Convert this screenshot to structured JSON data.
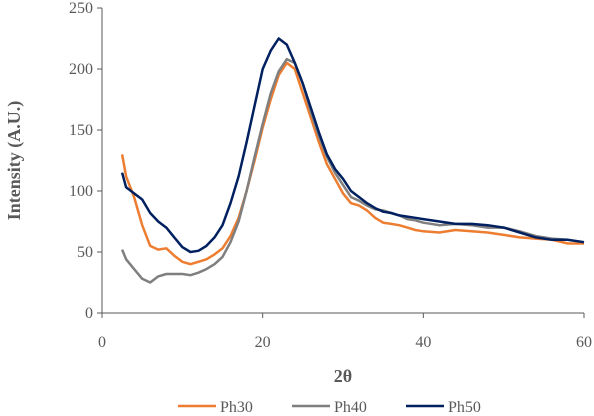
{
  "chart_data": {
    "type": "line",
    "title": "",
    "xlabel": "2θ",
    "ylabel": "Intensity (A.U.)",
    "xlim": [
      0,
      60
    ],
    "ylim": [
      0,
      250
    ],
    "xticks": [
      0,
      20,
      40,
      60
    ],
    "yticks": [
      0,
      50,
      100,
      150,
      200,
      250
    ],
    "grid": false,
    "legend_position": "bottom",
    "series": [
      {
        "name": "Ph30",
        "color": "#ED7D31",
        "points": [
          [
            2.5,
            130
          ],
          [
            3,
            112
          ],
          [
            4,
            95
          ],
          [
            5,
            72
          ],
          [
            6,
            55
          ],
          [
            7,
            52
          ],
          [
            8,
            53
          ],
          [
            9,
            47
          ],
          [
            10,
            42
          ],
          [
            11,
            40
          ],
          [
            12,
            42
          ],
          [
            13,
            44
          ],
          [
            14,
            48
          ],
          [
            15,
            53
          ],
          [
            16,
            63
          ],
          [
            17,
            78
          ],
          [
            18,
            100
          ],
          [
            19,
            125
          ],
          [
            20,
            152
          ],
          [
            21,
            175
          ],
          [
            22,
            195
          ],
          [
            23,
            205
          ],
          [
            24,
            200
          ],
          [
            25,
            180
          ],
          [
            26,
            160
          ],
          [
            27,
            140
          ],
          [
            28,
            122
          ],
          [
            29,
            110
          ],
          [
            30,
            98
          ],
          [
            31,
            90
          ],
          [
            32,
            88
          ],
          [
            33,
            84
          ],
          [
            34,
            78
          ],
          [
            35,
            74
          ],
          [
            36,
            73
          ],
          [
            37,
            72
          ],
          [
            38,
            70
          ],
          [
            39,
            68
          ],
          [
            40,
            67
          ],
          [
            42,
            66
          ],
          [
            44,
            68
          ],
          [
            46,
            67
          ],
          [
            48,
            66
          ],
          [
            50,
            64
          ],
          [
            52,
            62
          ],
          [
            54,
            61
          ],
          [
            56,
            60
          ],
          [
            58,
            57
          ],
          [
            60,
            57
          ]
        ]
      },
      {
        "name": "Ph40",
        "color": "#7F7F7F",
        "points": [
          [
            2.5,
            52
          ],
          [
            3,
            44
          ],
          [
            4,
            36
          ],
          [
            5,
            28
          ],
          [
            6,
            25
          ],
          [
            7,
            30
          ],
          [
            8,
            32
          ],
          [
            9,
            32
          ],
          [
            10,
            32
          ],
          [
            11,
            31
          ],
          [
            12,
            33
          ],
          [
            13,
            36
          ],
          [
            14,
            40
          ],
          [
            15,
            46
          ],
          [
            16,
            58
          ],
          [
            17,
            75
          ],
          [
            18,
            100
          ],
          [
            19,
            128
          ],
          [
            20,
            155
          ],
          [
            21,
            180
          ],
          [
            22,
            198
          ],
          [
            23,
            208
          ],
          [
            24,
            205
          ],
          [
            25,
            188
          ],
          [
            26,
            165
          ],
          [
            27,
            145
          ],
          [
            28,
            128
          ],
          [
            29,
            115
          ],
          [
            30,
            105
          ],
          [
            31,
            95
          ],
          [
            32,
            92
          ],
          [
            33,
            88
          ],
          [
            34,
            85
          ],
          [
            35,
            84
          ],
          [
            36,
            82
          ],
          [
            37,
            80
          ],
          [
            38,
            77
          ],
          [
            39,
            76
          ],
          [
            40,
            74
          ],
          [
            42,
            72
          ],
          [
            44,
            73
          ],
          [
            46,
            72
          ],
          [
            48,
            70
          ],
          [
            50,
            70
          ],
          [
            52,
            67
          ],
          [
            54,
            63
          ],
          [
            56,
            61
          ],
          [
            58,
            60
          ],
          [
            60,
            58
          ]
        ]
      },
      {
        "name": "Ph50",
        "color": "#002060",
        "points": [
          [
            2.5,
            115
          ],
          [
            3,
            103
          ],
          [
            4,
            98
          ],
          [
            5,
            93
          ],
          [
            6,
            82
          ],
          [
            7,
            75
          ],
          [
            8,
            70
          ],
          [
            9,
            62
          ],
          [
            10,
            54
          ],
          [
            11,
            50
          ],
          [
            12,
            51
          ],
          [
            13,
            55
          ],
          [
            14,
            62
          ],
          [
            15,
            72
          ],
          [
            16,
            90
          ],
          [
            17,
            112
          ],
          [
            18,
            140
          ],
          [
            19,
            170
          ],
          [
            20,
            200
          ],
          [
            21,
            215
          ],
          [
            22,
            225
          ],
          [
            23,
            220
          ],
          [
            24,
            205
          ],
          [
            25,
            188
          ],
          [
            26,
            168
          ],
          [
            27,
            148
          ],
          [
            28,
            130
          ],
          [
            29,
            118
          ],
          [
            30,
            110
          ],
          [
            31,
            100
          ],
          [
            32,
            95
          ],
          [
            33,
            90
          ],
          [
            34,
            86
          ],
          [
            35,
            83
          ],
          [
            36,
            82
          ],
          [
            37,
            80
          ],
          [
            38,
            79
          ],
          [
            39,
            78
          ],
          [
            40,
            77
          ],
          [
            42,
            75
          ],
          [
            44,
            73
          ],
          [
            46,
            73
          ],
          [
            48,
            72
          ],
          [
            50,
            70
          ],
          [
            52,
            66
          ],
          [
            54,
            62
          ],
          [
            56,
            60
          ],
          [
            58,
            60
          ],
          [
            60,
            58
          ]
        ]
      }
    ]
  }
}
